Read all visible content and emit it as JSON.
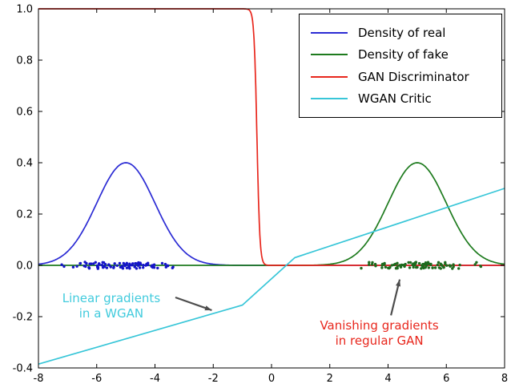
{
  "figure": {
    "background": "#ffffff",
    "frame_color": "#000000"
  },
  "chart_data": {
    "type": "line",
    "title": "",
    "xlabel": "",
    "ylabel": "",
    "xlim": [
      -8,
      8
    ],
    "ylim": [
      -0.4,
      1.0
    ],
    "grid": false,
    "legend_position": "upper right",
    "xtick_labels": [
      "-8",
      "-6",
      "-4",
      "-2",
      "0",
      "2",
      "4",
      "6",
      "8"
    ],
    "xtick_values": [
      -8,
      -6,
      -4,
      -2,
      0,
      2,
      4,
      6,
      8
    ],
    "ytick_labels": [
      "-0.4",
      "-0.2",
      "0.0",
      "0.2",
      "0.4",
      "0.6",
      "0.8",
      "1.0"
    ],
    "ytick_values": [
      -0.4,
      -0.2,
      0.0,
      0.2,
      0.4,
      0.6,
      0.8,
      1.0
    ],
    "series": [
      {
        "name": "Density of real",
        "type": "gaussian",
        "mean": -5,
        "std": 1,
        "peak": 0.4,
        "color": "#2b2bd4"
      },
      {
        "name": "Density of fake",
        "type": "gaussian",
        "mean": 5,
        "std": 1,
        "peak": 0.4,
        "color": "#1e7b1e"
      },
      {
        "name": "GAN Discriminator",
        "type": "sigmoid",
        "center": -0.5,
        "steepness": 20,
        "high": 1.0,
        "low": 0.0,
        "color": "#e8271d"
      },
      {
        "name": "WGAN Critic",
        "type": "polyline",
        "points": [
          [
            -8,
            -0.385
          ],
          [
            -1.0,
            -0.155
          ],
          [
            0.8,
            0.03
          ],
          [
            8,
            0.3
          ]
        ],
        "color": "#38c6d8"
      }
    ],
    "scatter": [
      {
        "name": "samples of real",
        "color": "#1414c8",
        "marker": "dot",
        "count": 90,
        "x_mean": -5,
        "x_std": 0.95,
        "x_range": [
          -7.3,
          -2.6
        ],
        "y_center": 0.0,
        "y_jitter": 0.013,
        "seed": 7
      },
      {
        "name": "samples of fake",
        "color": "#1d6a1d",
        "marker": "dot",
        "count": 90,
        "x_mean": 5,
        "x_std": 0.95,
        "x_range": [
          2.6,
          7.2
        ],
        "y_center": 0.0,
        "y_jitter": 0.013,
        "seed": 13
      }
    ],
    "annotations": [
      {
        "text_line1": "Linear gradients",
        "text_line2": "in a WGAN",
        "color": "#41cbdd",
        "anchor": [
          -5.5,
          -0.1
        ],
        "arrow_from": [
          -3.3,
          -0.125
        ],
        "arrow_to": [
          -2.05,
          -0.175
        ],
        "arrow_color": "#4d4d4d"
      },
      {
        "text_line1": "Vanishing gradients",
        "text_line2": "in regular GAN",
        "color": "#e8271d",
        "anchor": [
          3.7,
          -0.205
        ],
        "arrow_from": [
          4.1,
          -0.195
        ],
        "arrow_to": [
          4.4,
          -0.055
        ],
        "arrow_color": "#4d4d4d"
      }
    ]
  }
}
